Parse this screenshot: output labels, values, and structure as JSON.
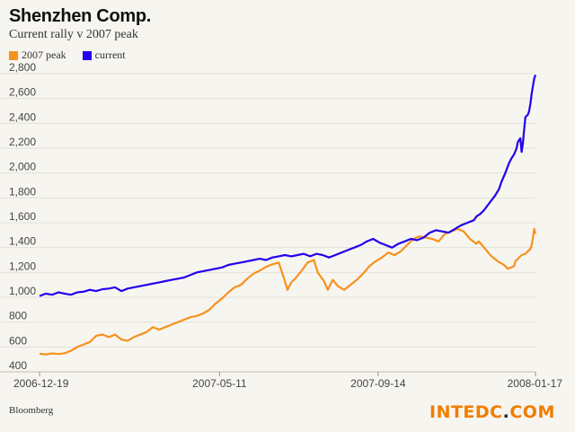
{
  "chart_data": {
    "type": "line",
    "title": "Shenzhen Comp.",
    "subtitle": "Current rally v 2007 peak",
    "xlabel": "",
    "ylabel": "",
    "ylim": [
      400,
      2800
    ],
    "yticks": [
      400,
      600,
      800,
      1000,
      1200,
      1400,
      1600,
      1800,
      2000,
      2200,
      2400,
      2600,
      2800
    ],
    "x_tick_labels": [
      "2006-12-19",
      "2007-05-11",
      "2007-09-14",
      "2008-01-17"
    ],
    "grid": true,
    "legend_position": "top-left",
    "x_start": "2006-12-19",
    "x_end": "2008-01-17",
    "series": [
      {
        "name": "2007 peak",
        "color": "#f7911d",
        "points": [
          [
            "2006-12-19",
            545
          ],
          [
            "2006-12-24",
            540
          ],
          [
            "2006-12-29",
            548
          ],
          [
            "2007-01-03",
            543
          ],
          [
            "2007-01-08",
            550
          ],
          [
            "2007-01-13",
            570
          ],
          [
            "2007-01-18",
            600
          ],
          [
            "2007-01-23",
            620
          ],
          [
            "2007-01-28",
            640
          ],
          [
            "2007-02-02",
            690
          ],
          [
            "2007-02-07",
            700
          ],
          [
            "2007-02-12",
            680
          ],
          [
            "2007-02-17",
            700
          ],
          [
            "2007-02-22",
            660
          ],
          [
            "2007-02-27",
            650
          ],
          [
            "2007-03-04",
            680
          ],
          [
            "2007-03-09",
            700
          ],
          [
            "2007-03-14",
            720
          ],
          [
            "2007-03-19",
            760
          ],
          [
            "2007-03-24",
            740
          ],
          [
            "2007-03-29",
            760
          ],
          [
            "2007-04-03",
            780
          ],
          [
            "2007-04-08",
            800
          ],
          [
            "2007-04-13",
            820
          ],
          [
            "2007-04-18",
            840
          ],
          [
            "2007-04-23",
            850
          ],
          [
            "2007-04-28",
            870
          ],
          [
            "2007-05-03",
            900
          ],
          [
            "2007-05-08",
            950
          ],
          [
            "2007-05-13",
            990
          ],
          [
            "2007-05-18",
            1040
          ],
          [
            "2007-05-23",
            1080
          ],
          [
            "2007-05-28",
            1100
          ],
          [
            "2007-06-02",
            1150
          ],
          [
            "2007-06-07",
            1190
          ],
          [
            "2007-06-12",
            1215
          ],
          [
            "2007-06-17",
            1245
          ],
          [
            "2007-06-22",
            1265
          ],
          [
            "2007-06-27",
            1280
          ],
          [
            "2007-07-01",
            1160
          ],
          [
            "2007-07-04",
            1060
          ],
          [
            "2007-07-07",
            1120
          ],
          [
            "2007-07-10",
            1150
          ],
          [
            "2007-07-15",
            1210
          ],
          [
            "2007-07-20",
            1280
          ],
          [
            "2007-07-25",
            1300
          ],
          [
            "2007-07-28",
            1200
          ],
          [
            "2007-08-02",
            1130
          ],
          [
            "2007-08-05",
            1060
          ],
          [
            "2007-08-09",
            1140
          ],
          [
            "2007-08-13",
            1090
          ],
          [
            "2007-08-18",
            1060
          ],
          [
            "2007-08-23",
            1100
          ],
          [
            "2007-08-28",
            1140
          ],
          [
            "2007-09-02",
            1190
          ],
          [
            "2007-09-07",
            1250
          ],
          [
            "2007-09-12",
            1290
          ],
          [
            "2007-09-17",
            1320
          ],
          [
            "2007-09-22",
            1360
          ],
          [
            "2007-09-27",
            1340
          ],
          [
            "2007-10-02",
            1370
          ],
          [
            "2007-10-07",
            1420
          ],
          [
            "2007-10-12",
            1470
          ],
          [
            "2007-10-17",
            1490
          ],
          [
            "2007-10-22",
            1480
          ],
          [
            "2007-10-27",
            1470
          ],
          [
            "2007-11-01",
            1450
          ],
          [
            "2007-11-06",
            1510
          ],
          [
            "2007-11-11",
            1530
          ],
          [
            "2007-11-16",
            1550
          ],
          [
            "2007-11-21",
            1530
          ],
          [
            "2007-11-26",
            1470
          ],
          [
            "2007-12-01",
            1430
          ],
          [
            "2007-12-03",
            1450
          ],
          [
            "2007-12-08",
            1390
          ],
          [
            "2007-12-13",
            1330
          ],
          [
            "2007-12-18",
            1290
          ],
          [
            "2007-12-23",
            1260
          ],
          [
            "2007-12-26",
            1230
          ],
          [
            "2007-12-31",
            1250
          ],
          [
            "2008-01-01",
            1290
          ],
          [
            "2008-01-06",
            1340
          ],
          [
            "2008-01-09",
            1350
          ],
          [
            "2008-01-11",
            1370
          ],
          [
            "2008-01-13",
            1390
          ],
          [
            "2008-01-14",
            1420
          ],
          [
            "2008-01-15",
            1480
          ],
          [
            "2008-01-16",
            1550
          ],
          [
            "2008-01-17",
            1510
          ]
        ]
      },
      {
        "name": "current",
        "color": "#2200ee",
        "points": [
          [
            "2006-12-19",
            1010
          ],
          [
            "2006-12-24",
            1030
          ],
          [
            "2006-12-29",
            1020
          ],
          [
            "2007-01-03",
            1040
          ],
          [
            "2007-01-08",
            1030
          ],
          [
            "2007-01-13",
            1020
          ],
          [
            "2007-01-18",
            1040
          ],
          [
            "2007-01-23",
            1045
          ],
          [
            "2007-01-28",
            1060
          ],
          [
            "2007-02-02",
            1050
          ],
          [
            "2007-02-07",
            1065
          ],
          [
            "2007-02-12",
            1070
          ],
          [
            "2007-02-17",
            1080
          ],
          [
            "2007-02-22",
            1050
          ],
          [
            "2007-02-27",
            1070
          ],
          [
            "2007-03-04",
            1080
          ],
          [
            "2007-03-09",
            1090
          ],
          [
            "2007-03-14",
            1100
          ],
          [
            "2007-03-19",
            1110
          ],
          [
            "2007-03-24",
            1120
          ],
          [
            "2007-03-29",
            1130
          ],
          [
            "2007-04-03",
            1140
          ],
          [
            "2007-04-08",
            1150
          ],
          [
            "2007-04-13",
            1160
          ],
          [
            "2007-04-18",
            1180
          ],
          [
            "2007-04-23",
            1200
          ],
          [
            "2007-04-28",
            1210
          ],
          [
            "2007-05-03",
            1220
          ],
          [
            "2007-05-08",
            1230
          ],
          [
            "2007-05-13",
            1240
          ],
          [
            "2007-05-18",
            1260
          ],
          [
            "2007-05-23",
            1270
          ],
          [
            "2007-05-28",
            1280
          ],
          [
            "2007-06-02",
            1290
          ],
          [
            "2007-06-07",
            1300
          ],
          [
            "2007-06-12",
            1310
          ],
          [
            "2007-06-17",
            1300
          ],
          [
            "2007-06-22",
            1320
          ],
          [
            "2007-06-27",
            1330
          ],
          [
            "2007-07-02",
            1340
          ],
          [
            "2007-07-07",
            1330
          ],
          [
            "2007-07-12",
            1340
          ],
          [
            "2007-07-17",
            1350
          ],
          [
            "2007-07-22",
            1330
          ],
          [
            "2007-07-27",
            1350
          ],
          [
            "2007-08-01",
            1340
          ],
          [
            "2007-08-06",
            1320
          ],
          [
            "2007-08-11",
            1340
          ],
          [
            "2007-08-16",
            1360
          ],
          [
            "2007-08-21",
            1380
          ],
          [
            "2007-08-26",
            1400
          ],
          [
            "2007-08-31",
            1420
          ],
          [
            "2007-09-05",
            1450
          ],
          [
            "2007-09-10",
            1470
          ],
          [
            "2007-09-15",
            1440
          ],
          [
            "2007-09-20",
            1420
          ],
          [
            "2007-09-25",
            1400
          ],
          [
            "2007-09-30",
            1430
          ],
          [
            "2007-10-05",
            1450
          ],
          [
            "2007-10-10",
            1470
          ],
          [
            "2007-10-15",
            1460
          ],
          [
            "2007-10-20",
            1480
          ],
          [
            "2007-10-25",
            1520
          ],
          [
            "2007-10-30",
            1540
          ],
          [
            "2007-11-04",
            1530
          ],
          [
            "2007-11-09",
            1520
          ],
          [
            "2007-11-14",
            1550
          ],
          [
            "2007-11-19",
            1580
          ],
          [
            "2007-11-24",
            1600
          ],
          [
            "2007-11-29",
            1620
          ],
          [
            "2007-12-01",
            1650
          ],
          [
            "2007-12-04",
            1670
          ],
          [
            "2007-12-07",
            1700
          ],
          [
            "2007-12-10",
            1740
          ],
          [
            "2007-12-13",
            1780
          ],
          [
            "2007-12-16",
            1820
          ],
          [
            "2007-12-19",
            1870
          ],
          [
            "2007-12-21",
            1930
          ],
          [
            "2007-12-24",
            2000
          ],
          [
            "2007-12-27",
            2080
          ],
          [
            "2007-12-29",
            2120
          ],
          [
            "2007-12-31",
            2150
          ],
          [
            "2008-01-02",
            2200
          ],
          [
            "2008-01-03",
            2250
          ],
          [
            "2008-01-05",
            2280
          ],
          [
            "2008-01-06",
            2170
          ],
          [
            "2008-01-07",
            2240
          ],
          [
            "2008-01-08",
            2350
          ],
          [
            "2008-01-09",
            2450
          ],
          [
            "2008-01-11",
            2470
          ],
          [
            "2008-01-12",
            2500
          ],
          [
            "2008-01-13",
            2560
          ],
          [
            "2008-01-14",
            2640
          ],
          [
            "2008-01-15",
            2700
          ],
          [
            "2008-01-16",
            2760
          ],
          [
            "2008-01-17",
            2790
          ]
        ]
      }
    ]
  },
  "source": "Bloomberg",
  "watermark": {
    "left": "INTEDC",
    "dot": ".",
    "right": "COM"
  },
  "colors": {
    "background": "#f7f5ef",
    "grid": "#e2e0d9",
    "orange": "#f7911d",
    "blue": "#2200ee"
  }
}
